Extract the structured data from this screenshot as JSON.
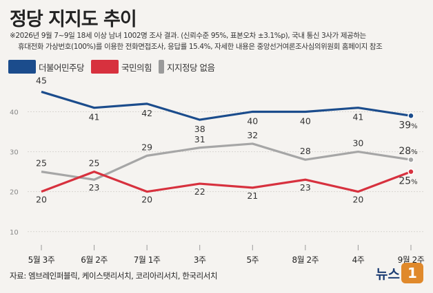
{
  "title": "정당 지지도 추이",
  "note_line1": "※2026년 9월 7~9일 18세 이상 남녀 1002명 조사 결과. (신뢰수준 95%, 표본오차 ±3.1%p), 국내 통신 3사가 제공하는",
  "note_line2": "휴대전화 가상번호(100%)를 이용한 전화면접조사, 응답률 15.4%, 자세한 내용은 중앙선거여론조사심의위원회 홈페이지 참조",
  "legend": [
    {
      "label": "더불어민주당",
      "color": "#1b4c8c"
    },
    {
      "label": "국민의힘",
      "color": "#d7313e"
    },
    {
      "label": "지지정당 없음",
      "color": "#a6a6a6"
    }
  ],
  "source": "자료: 엠브레인퍼블릭, 케이스탯리서치, 코리아리서치, 한국리서치",
  "logo_text": "뉴스",
  "logo_mark": "1",
  "chart_data": {
    "type": "line",
    "categories": [
      "5월 3주",
      "6월 2주",
      "7월 1주",
      "3주",
      "5주",
      "8월 2주",
      "4주",
      "9월 2주"
    ],
    "series": [
      {
        "name": "더불어민주당",
        "color": "#1b4c8c",
        "values": [
          45,
          41,
          42,
          38,
          40,
          40,
          41,
          39
        ]
      },
      {
        "name": "국민의힘",
        "color": "#d7313e",
        "values": [
          20,
          25,
          20,
          22,
          21,
          23,
          20,
          25
        ]
      },
      {
        "name": "지지정당 없음",
        "color": "#a6a6a6",
        "values": [
          25,
          23,
          29,
          31,
          32,
          28,
          30,
          28
        ]
      }
    ],
    "last_value_suffix": "%",
    "yticks": [
      10,
      20,
      30,
      40
    ],
    "ylim": [
      6,
      48
    ],
    "grid": true
  }
}
